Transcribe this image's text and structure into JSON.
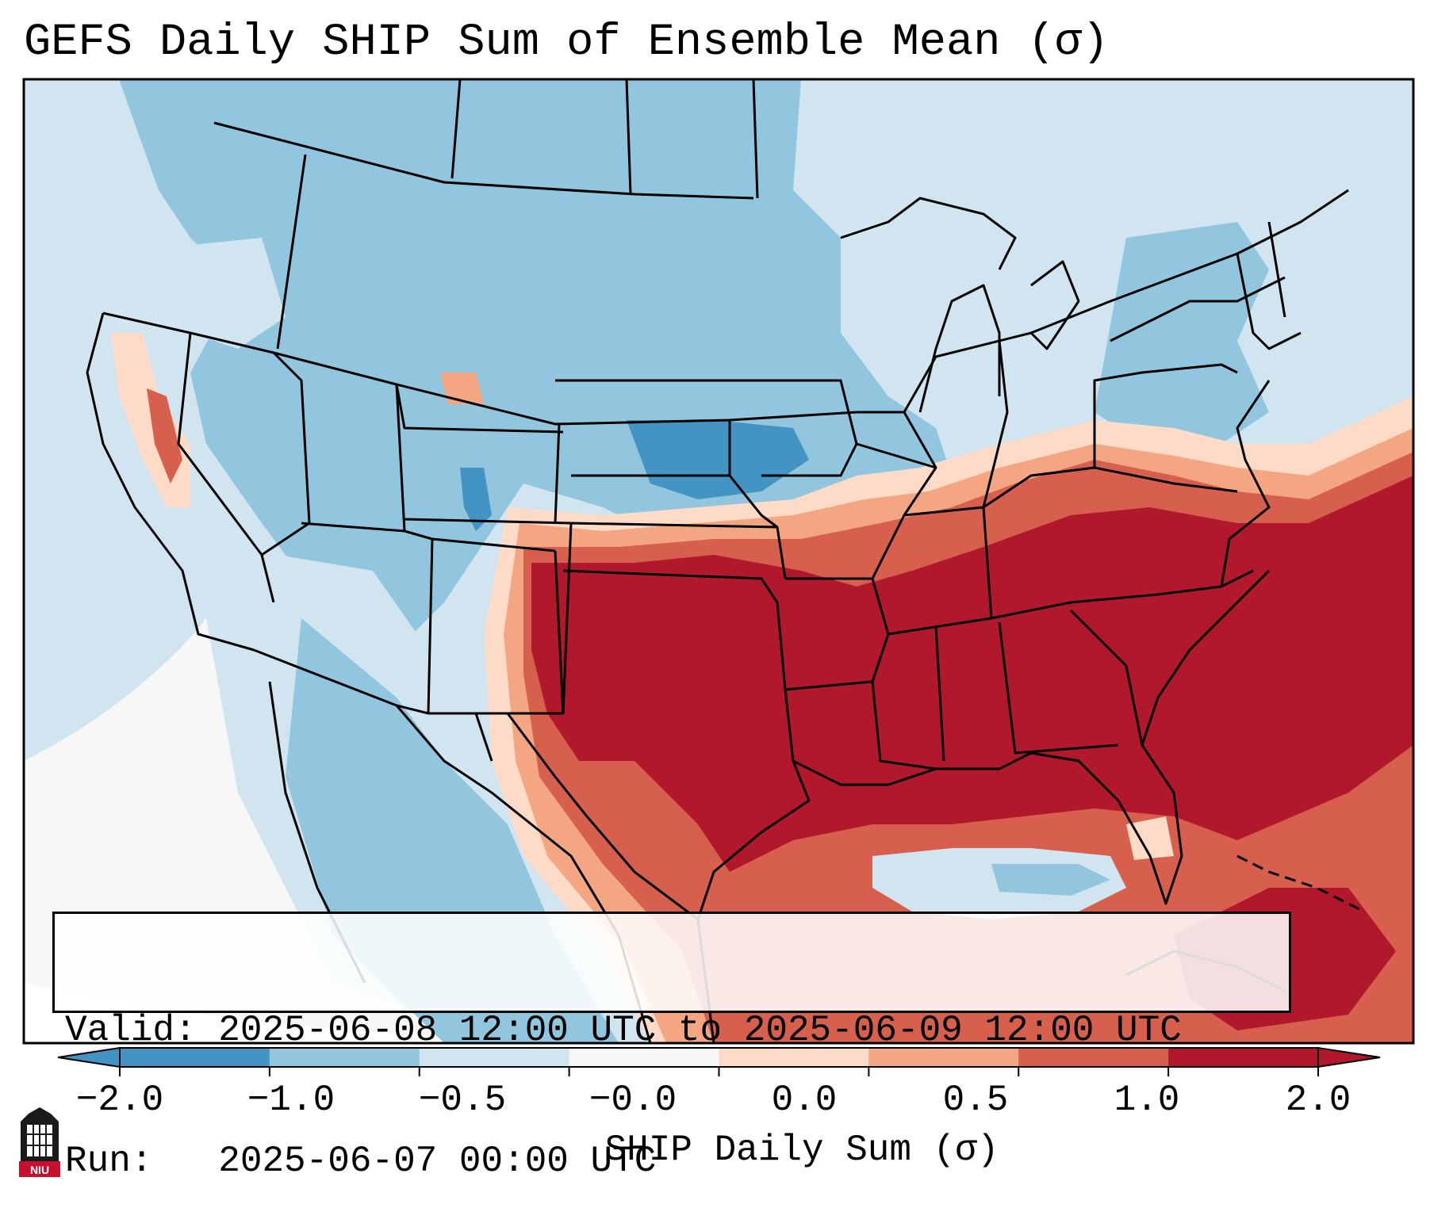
{
  "title": "GEFS Daily SHIP Sum of Ensemble Mean (σ)",
  "info_box": {
    "valid_line": "Valid: 2025-06-08 12:00 UTC to 2025-06-09 12:00 UTC",
    "run_line": "Run:   2025-06-07 00:00 UTC"
  },
  "colorbar": {
    "label": "SHIP Daily Sum (σ)",
    "ticks": [
      "−2.0",
      "−1.0",
      "−0.5",
      "−0.0",
      "0.0",
      "0.5",
      "1.0",
      "2.0"
    ],
    "colors": [
      "#4393c3",
      "#92c5de",
      "#d1e5f0",
      "#f7f7f7",
      "#fddbc7",
      "#f4a582",
      "#d6604d",
      "#b2182b"
    ],
    "extend": "both"
  },
  "logo": {
    "text": "NIU",
    "name": "niu-logo"
  },
  "colors": {
    "very_high": "#b2182b",
    "high": "#d6604d",
    "moderate": "#f4a582",
    "light_positive": "#fddbc7",
    "neutral": "#f7f7f7",
    "light_negative": "#d1e5f0",
    "moderate_negative": "#92c5de",
    "strong_negative": "#4393c3"
  }
}
